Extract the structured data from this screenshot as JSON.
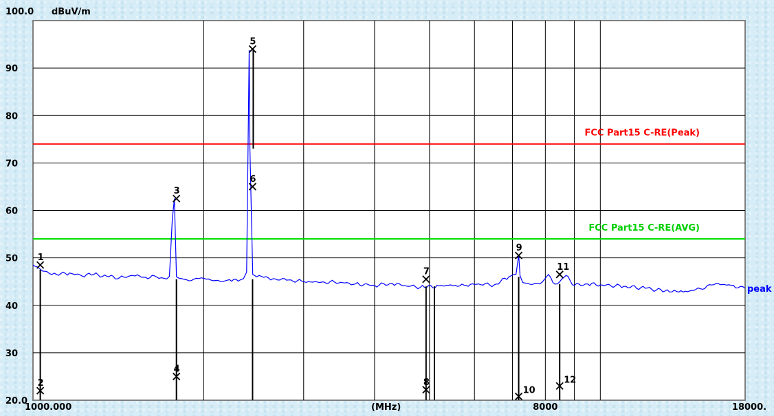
{
  "chart_data": {
    "type": "line",
    "y_unit": "dBuV/m",
    "x_unit": "(MHz)",
    "x_scale": "log",
    "xlim": [
      1000,
      18000
    ],
    "ylim": [
      20,
      100
    ],
    "y_ticks": [
      {
        "value": 100,
        "label": "100.0"
      },
      {
        "value": 90,
        "label": "90"
      },
      {
        "value": 80,
        "label": "80"
      },
      {
        "value": 70,
        "label": "70"
      },
      {
        "value": 60,
        "label": "60"
      },
      {
        "value": 50,
        "label": "50"
      },
      {
        "value": 40,
        "label": "40"
      },
      {
        "value": 30,
        "label": "30"
      },
      {
        "value": 20,
        "label": "20.0"
      }
    ],
    "x_tick_labels": [
      {
        "value": 1000,
        "label": "1000.000"
      },
      {
        "value": 8000,
        "label": "8000"
      },
      {
        "value": 18000,
        "label": "18000."
      }
    ],
    "x_gridlines": [
      2000,
      3000,
      4000,
      5000,
      6000,
      7000,
      8000,
      9000,
      10000
    ],
    "grid": true,
    "limit_lines": [
      {
        "name": "FCC Part15 C-RE(Peak)",
        "value": 74,
        "color": "#ff0000"
      },
      {
        "name": "FCC Part15 C-RE(AVG)",
        "value": 54,
        "color": "#00e000"
      }
    ],
    "series": [
      {
        "name": "peak",
        "color": "#0000ff",
        "x": [
          1000,
          1040,
          1100,
          1160,
          1220,
          1280,
          1350,
          1420,
          1500,
          1580,
          1650,
          1700,
          1740,
          1760,
          1775,
          1790,
          1830,
          1900,
          1980,
          2060,
          2140,
          2220,
          2300,
          2350,
          2380,
          2395,
          2405,
          2412,
          2420,
          2440,
          2480,
          2550,
          2650,
          2800,
          3000,
          3200,
          3400,
          3700,
          4000,
          4300,
          4600,
          4900,
          5200,
          5450,
          5600,
          5800,
          6100,
          6500,
          6900,
          7100,
          7180,
          7220,
          7300,
          7600,
          7900,
          8100,
          8250,
          8400,
          8700,
          9000,
          9500,
          10000,
          11000,
          12000,
          13000,
          13500,
          14000,
          15000,
          16000,
          17000,
          18000
        ],
        "values": [
          48.5,
          47.2,
          46.5,
          46.8,
          46.2,
          46.5,
          46.1,
          45.8,
          46.3,
          45.9,
          46.0,
          45.7,
          46.1,
          58.0,
          62.5,
          46.0,
          45.6,
          45.2,
          45.8,
          45.3,
          45.0,
          45.4,
          45.1,
          45.6,
          47.0,
          75.0,
          93.8,
          73.0,
          65.0,
          46.5,
          46.0,
          45.9,
          45.6,
          45.3,
          45.0,
          44.8,
          44.9,
          44.5,
          44.2,
          44.6,
          44.0,
          43.8,
          44.1,
          44.3,
          44.0,
          44.2,
          44.5,
          44.3,
          46.0,
          46.5,
          50.5,
          46.2,
          44.8,
          44.4,
          44.9,
          46.5,
          44.8,
          44.5,
          46.3,
          44.2,
          44.5,
          44.3,
          44.0,
          43.6,
          43.0,
          43.2,
          42.8,
          43.5,
          44.6,
          44.2,
          43.6
        ]
      }
    ],
    "markers": [
      {
        "label": "1",
        "x": 1030,
        "y": 48.5
      },
      {
        "label": "2",
        "x": 1030,
        "y": 22.0
      },
      {
        "label": "3",
        "x": 1790,
        "y": 62.5
      },
      {
        "label": "4",
        "x": 1790,
        "y": 25.0
      },
      {
        "label": "5",
        "x": 2438,
        "y": 94.0
      },
      {
        "label": "6",
        "x": 2438,
        "y": 65.0
      },
      {
        "label": "7",
        "x": 4930,
        "y": 45.5
      },
      {
        "label": "8",
        "x": 4930,
        "y": 22.2
      },
      {
        "label": "9",
        "x": 7180,
        "y": 50.5
      },
      {
        "label": "10",
        "x": 7180,
        "y": 20.8
      },
      {
        "label": "11",
        "x": 8480,
        "y": 46.5
      },
      {
        "label": "12",
        "x": 8480,
        "y": 23.0
      }
    ],
    "marker_stems": [
      {
        "x": 1030,
        "y1": 20,
        "y2": 47.5
      },
      {
        "x": 1790,
        "y1": 20,
        "y2": 45.5
      },
      {
        "x": 2438,
        "y1": 20,
        "y2": 45.5
      },
      {
        "x": 4930,
        "y1": 20,
        "y2": 44.0
      },
      {
        "x": 5100,
        "y1": 20,
        "y2": 44.0
      },
      {
        "x": 7180,
        "y1": 20,
        "y2": 46.0
      },
      {
        "x": 8480,
        "y1": 20,
        "y2": 44.5
      }
    ]
  }
}
